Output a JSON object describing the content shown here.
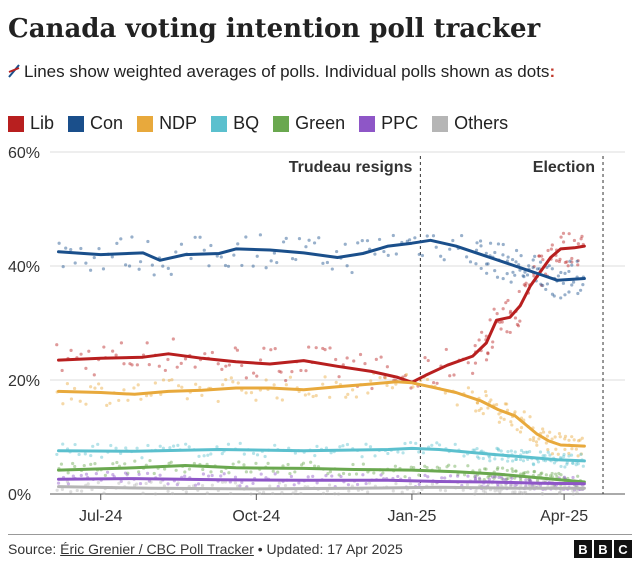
{
  "title": "Canada voting intention poll tracker",
  "subtitle_line": "Lines show weighted averages of polls. Individual polls shown as dots",
  "subtitle_colon": ":",
  "legend": [
    {
      "label": "Lib",
      "color": "#b81f1f"
    },
    {
      "label": "Con",
      "color": "#1a4f8b"
    },
    {
      "label": "NDP",
      "color": "#e8a93c"
    },
    {
      "label": "BQ",
      "color": "#5bc0ce"
    },
    {
      "label": "Green",
      "color": "#6aa84f"
    },
    {
      "label": "PPC",
      "color": "#8e56c7"
    },
    {
      "label": "Others",
      "color": "#b5b5b5"
    }
  ],
  "footer": {
    "source_label": "Source: ",
    "source_name": "Éric Grenier / CBC Poll Tracker",
    "updated": " • Updated: 17 Apr 2025"
  },
  "logo": [
    "B",
    "B",
    "C"
  ],
  "chart_data": {
    "type": "line",
    "x_unit": "days since 2024-06-01",
    "x_range": [
      0,
      320
    ],
    "ylim": [
      0,
      60
    ],
    "y_ticks": [
      {
        "value": 0,
        "label": "0%"
      },
      {
        "value": 20,
        "label": "20%"
      },
      {
        "value": 40,
        "label": "40%"
      },
      {
        "value": 60,
        "label": "60%"
      }
    ],
    "x_ticks": [
      {
        "value": 30,
        "label": "Jul-24"
      },
      {
        "value": 122,
        "label": "Oct-24"
      },
      {
        "value": 214,
        "label": "Jan-25"
      },
      {
        "value": 304,
        "label": "Apr-25"
      }
    ],
    "annotations": [
      {
        "x": 219,
        "label": "Trudeau resigns",
        "align": "left"
      },
      {
        "x": 327,
        "label": "Election",
        "align": "left"
      }
    ],
    "series": [
      {
        "name": "Lib",
        "color": "#b81f1f",
        "points": [
          [
            5,
            23.5
          ],
          [
            30,
            23.8
          ],
          [
            55,
            24
          ],
          [
            70,
            24.6
          ],
          [
            90,
            23.8
          ],
          [
            110,
            23.2
          ],
          [
            130,
            22.8
          ],
          [
            150,
            23.4
          ],
          [
            170,
            22.4
          ],
          [
            190,
            21.5
          ],
          [
            205,
            20.5
          ],
          [
            214,
            19.6
          ],
          [
            222,
            20.8
          ],
          [
            235,
            22.6
          ],
          [
            250,
            24.2
          ],
          [
            258,
            26.5
          ],
          [
            264,
            30.5
          ],
          [
            272,
            31
          ],
          [
            278,
            33
          ],
          [
            284,
            36.5
          ],
          [
            290,
            39
          ],
          [
            296,
            41.5
          ],
          [
            302,
            43
          ],
          [
            310,
            43.2
          ],
          [
            316,
            43.5
          ]
        ]
      },
      {
        "name": "Con",
        "color": "#1a4f8b",
        "points": [
          [
            5,
            42.5
          ],
          [
            30,
            42
          ],
          [
            55,
            42.3
          ],
          [
            65,
            41
          ],
          [
            80,
            42
          ],
          [
            100,
            42.2
          ],
          [
            110,
            43
          ],
          [
            130,
            42.8
          ],
          [
            150,
            42.3
          ],
          [
            170,
            41.5
          ],
          [
            185,
            42.2
          ],
          [
            200,
            43.5
          ],
          [
            214,
            44
          ],
          [
            225,
            44.5
          ],
          [
            240,
            43.5
          ],
          [
            255,
            42
          ],
          [
            270,
            40.5
          ],
          [
            280,
            39.5
          ],
          [
            290,
            38.5
          ],
          [
            300,
            37.5
          ],
          [
            316,
            37.8
          ]
        ]
      },
      {
        "name": "NDP",
        "color": "#e8a93c",
        "points": [
          [
            5,
            18
          ],
          [
            30,
            17.8
          ],
          [
            50,
            17.5
          ],
          [
            70,
            18
          ],
          [
            90,
            18.2
          ],
          [
            110,
            18.6
          ],
          [
            130,
            18.6
          ],
          [
            150,
            18.3
          ],
          [
            170,
            18.8
          ],
          [
            190,
            19.3
          ],
          [
            205,
            19.7
          ],
          [
            214,
            19.5
          ],
          [
            225,
            18.8
          ],
          [
            240,
            17.8
          ],
          [
            255,
            16.3
          ],
          [
            265,
            14.8
          ],
          [
            275,
            13.7
          ],
          [
            282,
            12
          ],
          [
            288,
            10.5
          ],
          [
            295,
            9.3
          ],
          [
            302,
            8.6
          ],
          [
            316,
            8.4
          ]
        ]
      },
      {
        "name": "BQ",
        "color": "#5bc0ce",
        "points": [
          [
            5,
            7.6
          ],
          [
            50,
            7.5
          ],
          [
            100,
            7.8
          ],
          [
            150,
            7.6
          ],
          [
            200,
            7.8
          ],
          [
            214,
            8
          ],
          [
            230,
            7.8
          ],
          [
            260,
            7
          ],
          [
            280,
            6.5
          ],
          [
            300,
            6
          ],
          [
            316,
            5.8
          ]
        ]
      },
      {
        "name": "Green",
        "color": "#6aa84f",
        "points": [
          [
            5,
            4.2
          ],
          [
            50,
            4.6
          ],
          [
            80,
            5
          ],
          [
            110,
            4.6
          ],
          [
            150,
            4.5
          ],
          [
            180,
            4.3
          ],
          [
            214,
            4.2
          ],
          [
            240,
            3.9
          ],
          [
            265,
            3.5
          ],
          [
            290,
            2.8
          ],
          [
            316,
            2.1
          ]
        ]
      },
      {
        "name": "PPC",
        "color": "#8e56c7",
        "points": [
          [
            5,
            2.6
          ],
          [
            50,
            2.7
          ],
          [
            100,
            2.5
          ],
          [
            150,
            2.4
          ],
          [
            200,
            2.4
          ],
          [
            230,
            2.2
          ],
          [
            260,
            2.1
          ],
          [
            290,
            1.9
          ],
          [
            316,
            1.8
          ]
        ]
      },
      {
        "name": "Others",
        "color": "#b5b5b5",
        "points": [
          [
            5,
            1.3
          ],
          [
            60,
            1
          ],
          [
            120,
            0.9
          ],
          [
            180,
            1
          ],
          [
            230,
            1.2
          ],
          [
            280,
            1
          ],
          [
            316,
            1
          ]
        ]
      }
    ]
  }
}
